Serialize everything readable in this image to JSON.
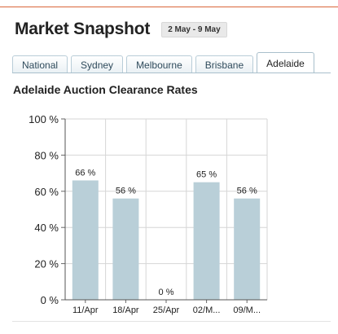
{
  "header": {
    "title": "Market Snapshot",
    "date_range": "2 May - 9 May"
  },
  "tabs": [
    {
      "label": "National"
    },
    {
      "label": "Sydney"
    },
    {
      "label": "Melbourne"
    },
    {
      "label": "Brisbane"
    },
    {
      "label": "Adelaide",
      "active": true
    }
  ],
  "colors": {
    "accent_rule": "#d9663a",
    "bar": "#b9cfd8",
    "grid": "#d6d6d6",
    "tab_border": "#b9cdd8"
  },
  "chart_data": {
    "type": "bar",
    "title": "Adelaide Auction Clearance Rates",
    "xlabel": "",
    "ylabel": "",
    "categories": [
      "11/Apr",
      "18/Apr",
      "25/Apr",
      "02/M...",
      "09/M..."
    ],
    "values": [
      66,
      56,
      0,
      65,
      56
    ],
    "data_labels": [
      "66 %",
      "56 %",
      "0 %",
      "65 %",
      "56 %"
    ],
    "ylim": [
      0,
      100
    ],
    "yticks": [
      0,
      20,
      40,
      60,
      80,
      100
    ],
    "ytick_labels": [
      "0 %",
      "20 %",
      "40 %",
      "60 %",
      "80 %",
      "100 %"
    ],
    "grid": true,
    "legend": "none"
  }
}
